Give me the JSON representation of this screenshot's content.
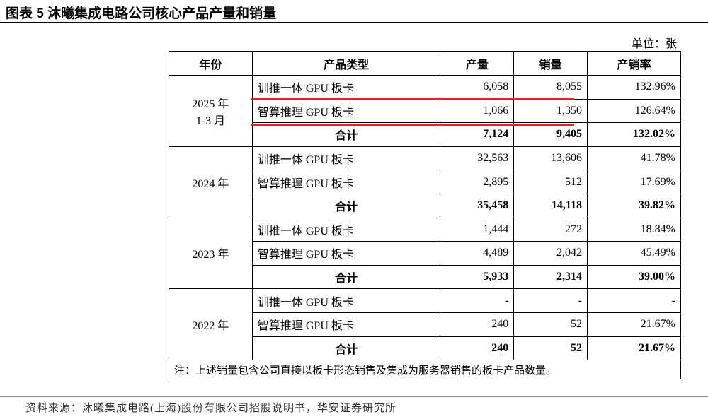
{
  "header": {
    "title": "图表 5 沐曦集成电路公司核心产品产量和销量",
    "unit": "单位：张"
  },
  "table": {
    "columns": [
      "年份",
      "产品类型",
      "产量",
      "销量",
      "产销率"
    ],
    "groups": [
      {
        "year": [
          "2025 年",
          "1-3 月"
        ],
        "rows": [
          [
            "训推一体 GPU 板卡",
            "6,058",
            "8,055",
            "132.96%"
          ],
          [
            "智算推理 GPU 板卡",
            "1,066",
            "1,350",
            "126.64%"
          ],
          [
            "合计",
            "7,124",
            "9,405",
            "132.02%"
          ]
        ]
      },
      {
        "year": [
          "2024 年"
        ],
        "rows": [
          [
            "训推一体 GPU 板卡",
            "32,563",
            "13,606",
            "41.78%"
          ],
          [
            "智算推理 GPU 板卡",
            "2,895",
            "512",
            "17.69%"
          ],
          [
            "合计",
            "35,458",
            "14,118",
            "39.82%"
          ]
        ]
      },
      {
        "year": [
          "2023 年"
        ],
        "rows": [
          [
            "训推一体 GPU 板卡",
            "1,444",
            "272",
            "18.84%"
          ],
          [
            "智算推理 GPU 板卡",
            "4,489",
            "2,042",
            "45.49%"
          ],
          [
            "合计",
            "5,933",
            "2,314",
            "39.00%"
          ]
        ]
      },
      {
        "year": [
          "2022 年"
        ],
        "rows": [
          [
            "训推一体 GPU 板卡",
            "-",
            "-",
            "-"
          ],
          [
            "智算推理 GPU 板卡",
            "240",
            "52",
            "21.67%"
          ],
          [
            "合计",
            "240",
            "52",
            "21.67%"
          ]
        ]
      }
    ],
    "note": "注：上述销量包含公司直接以板卡形态销售及集成为服务器销售的板卡产品数量。"
  },
  "footer": {
    "source": "资料来源：沐曦集成电路(上海)股份有限公司招股说明书，华安证券研究所"
  }
}
